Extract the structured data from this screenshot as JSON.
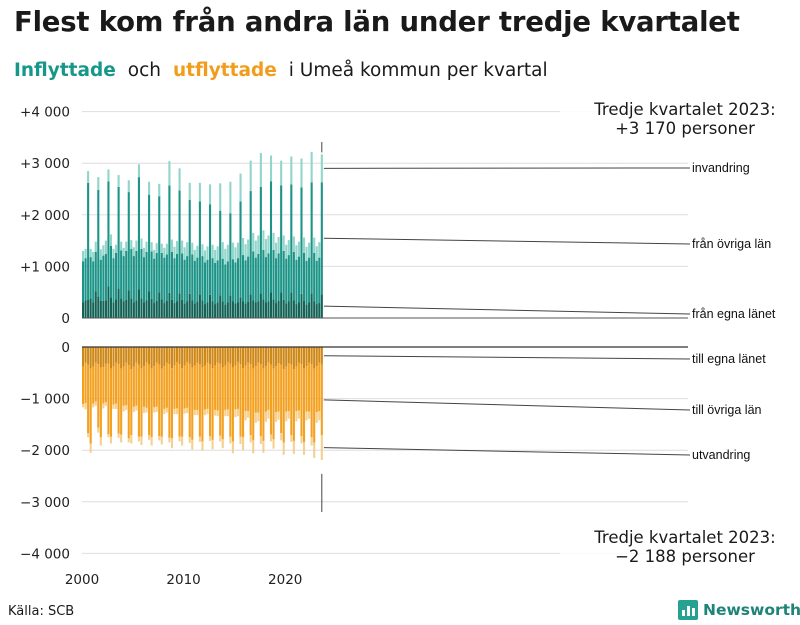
{
  "title": "Flest kom från andra län under tredje kvartalet",
  "subtitle": {
    "in_word": "Inflyttade",
    "and_word": "och",
    "out_word": "utflyttade",
    "rest": "i Umeå  kommun  per  kvartal"
  },
  "source": "Källa: SCB",
  "brand": "Newsworthy",
  "colors": {
    "in_egna": "#126356",
    "in_ovriga": "#1c9487",
    "in_invandring": "#92d5cb",
    "out_egna": "#cf8716",
    "out_ovriga": "#f4a020",
    "out_utvandring": "#f6d08e",
    "grid": "#dedede",
    "brand": "#27a191"
  },
  "annotations": {
    "top_line1": "Tredje kvartalet 2023:",
    "top_line2": "+3 170 personer",
    "bottom_line1": "Tredje kvartalet 2023:",
    "bottom_line2": "−2 188 personer"
  },
  "chart_data": {
    "type": "bar",
    "title": "Flest kom från andra län under tredje kvartalet",
    "subtitle": "Inflyttade och utflyttade i Umeå kommun per kvartal",
    "x": "quarters 2000 Q1 – 2023 Q3",
    "x_start": 2000,
    "x_ticks": [
      "2000",
      "2010",
      "2020"
    ],
    "ylim": [
      -4000,
      4000
    ],
    "y_ticks": [
      "+4 000",
      "+3 000",
      "+2 000",
      "+1 000",
      "0",
      "−1 000",
      "−2 000",
      "−3 000",
      "−4 000"
    ],
    "legend_in": [
      "invandring",
      "från övriga län",
      "från egna länet"
    ],
    "legend_out": [
      "till egna länet",
      "till övriga län",
      "utvandring"
    ],
    "series": [
      {
        "name": "från egna länet",
        "values": [
          300,
          340,
          350,
          380,
          300,
          520,
          420,
          330,
          330,
          340,
          610,
          400,
          300,
          360,
          570,
          380,
          320,
          350,
          540,
          380,
          300,
          340,
          560,
          380,
          300,
          340,
          520,
          370,
          290,
          330,
          500,
          360,
          290,
          330,
          490,
          350,
          290,
          320,
          480,
          350,
          280,
          320,
          470,
          340,
          280,
          310,
          460,
          340,
          270,
          300,
          450,
          320,
          270,
          300,
          440,
          320,
          260,
          300,
          440,
          320,
          280,
          300,
          400,
          320,
          280,
          310,
          460,
          340,
          300,
          320,
          480,
          360,
          300,
          320,
          500,
          360,
          290,
          330,
          500,
          350,
          280,
          320,
          500,
          340,
          270,
          300,
          470,
          330,
          260,
          300,
          480,
          320,
          270,
          290,
          460
        ]
      },
      {
        "name": "från övriga län",
        "values": [
          800,
          820,
          2270,
          800,
          800,
          760,
          2060,
          800,
          880,
          900,
          2040,
          1000,
          860,
          900,
          1970,
          930,
          880,
          950,
          1900,
          960,
          900,
          960,
          2170,
          960,
          880,
          940,
          1870,
          920,
          860,
          930,
          1860,
          900,
          880,
          900,
          2080,
          930,
          870,
          920,
          1990,
          900,
          850,
          880,
          1820,
          890,
          830,
          860,
          1800,
          860,
          810,
          830,
          1750,
          840,
          800,
          820,
          1640,
          830,
          780,
          800,
          1590,
          820,
          800,
          860,
          1860,
          900,
          840,
          880,
          2000,
          950,
          870,
          920,
          2060,
          960,
          880,
          930,
          2150,
          960,
          870,
          920,
          2070,
          950,
          870,
          900,
          2090,
          940,
          860,
          890,
          2060,
          930,
          850,
          870,
          2150,
          940,
          840,
          880,
          2170
        ]
      },
      {
        "name": "invandring",
        "values": [
          200,
          180,
          230,
          160,
          180,
          200,
          250,
          200,
          200,
          260,
          230,
          220,
          180,
          160,
          230,
          170,
          160,
          180,
          230,
          170,
          170,
          200,
          250,
          200,
          180,
          200,
          250,
          180,
          170,
          190,
          240,
          180,
          190,
          210,
          470,
          240,
          220,
          250,
          430,
          250,
          240,
          270,
          330,
          230,
          210,
          230,
          360,
          230,
          230,
          260,
          390,
          260,
          250,
          270,
          530,
          320,
          300,
          320,
          610,
          320,
          290,
          300,
          540,
          330,
          310,
          330,
          590,
          360,
          330,
          360,
          660,
          380,
          350,
          350,
          500,
          330,
          300,
          320,
          480,
          300,
          270,
          290,
          540,
          300,
          280,
          290,
          560,
          300,
          270,
          290,
          590,
          300,
          280,
          300,
          540
        ]
      },
      {
        "name": "till egna länet",
        "values": [
          -380,
          -300,
          -340,
          -420,
          -380,
          -300,
          -330,
          -400,
          -390,
          -320,
          -320,
          -420,
          -380,
          -300,
          -330,
          -420,
          -380,
          -300,
          -350,
          -430,
          -380,
          -300,
          -340,
          -420,
          -370,
          -300,
          -340,
          -420,
          -370,
          -300,
          -340,
          -420,
          -370,
          -300,
          -330,
          -410,
          -360,
          -290,
          -330,
          -410,
          -360,
          -290,
          -320,
          -400,
          -360,
          -300,
          -330,
          -400,
          -360,
          -300,
          -330,
          -410,
          -360,
          -300,
          -320,
          -400,
          -360,
          -290,
          -320,
          -400,
          -360,
          -290,
          -330,
          -410,
          -360,
          -300,
          -330,
          -420,
          -370,
          -300,
          -330,
          -420,
          -370,
          -300,
          -340,
          -420,
          -370,
          -310,
          -340,
          -430,
          -380,
          -310,
          -340,
          -430,
          -380,
          -300,
          -330,
          -420,
          -370,
          -300,
          -330,
          -420,
          -370,
          -300,
          -340
        ]
      },
      {
        "name": "till övriga län",
        "values": [
          -730,
          -790,
          -1330,
          -1450,
          -720,
          -760,
          -1230,
          -1350,
          -710,
          -750,
          -1370,
          -1320,
          -740,
          -800,
          -1350,
          -1280,
          -760,
          -830,
          -1420,
          -1280,
          -780,
          -840,
          -1400,
          -1320,
          -790,
          -880,
          -1370,
          -1330,
          -800,
          -860,
          -1390,
          -1320,
          -830,
          -880,
          -1430,
          -1360,
          -840,
          -900,
          -1410,
          -1330,
          -830,
          -890,
          -1430,
          -1400,
          -860,
          -920,
          -1410,
          -1430,
          -850,
          -900,
          -1400,
          -1390,
          -860,
          -930,
          -1400,
          -1390,
          -860,
          -920,
          -1420,
          -1430,
          -850,
          -910,
          -1410,
          -1340,
          -880,
          -940,
          -1380,
          -1390,
          -900,
          -970,
          -1400,
          -1400,
          -880,
          -920,
          -1360,
          -1370,
          -890,
          -940,
          -1330,
          -1420,
          -870,
          -930,
          -1370,
          -1390,
          -860,
          -930,
          -1400,
          -1420,
          -880,
          -950,
          -1420,
          -1430,
          -890,
          -940,
          -1370
        ]
      },
      {
        "name": "utvandring",
        "values": [
          -60,
          -120,
          -80,
          -180,
          -70,
          -80,
          -100,
          -160,
          -90,
          -70,
          -60,
          -130,
          -80,
          -100,
          -80,
          -150,
          -110,
          -90,
          -80,
          -160,
          -100,
          -90,
          -90,
          -160,
          -120,
          -90,
          -90,
          -160,
          -100,
          -100,
          -80,
          -150,
          -100,
          -90,
          -90,
          -190,
          -100,
          -110,
          -90,
          -170,
          -100,
          -100,
          -110,
          -190,
          -100,
          -100,
          -100,
          -180,
          -110,
          -100,
          -90,
          -180,
          -110,
          -110,
          -110,
          -170,
          -120,
          -130,
          -130,
          -230,
          -150,
          -140,
          -140,
          -250,
          -180,
          -130,
          -140,
          -250,
          -200,
          -170,
          -150,
          -230,
          -200,
          -170,
          -130,
          -180,
          -190,
          -160,
          -140,
          -240,
          -190,
          -150,
          -130,
          -250,
          -200,
          -160,
          -140,
          -250,
          -170,
          -140,
          -160,
          -300,
          -210,
          -180,
          -480
        ]
      }
    ],
    "last_in_total": 3170,
    "last_out_total": -2188
  }
}
